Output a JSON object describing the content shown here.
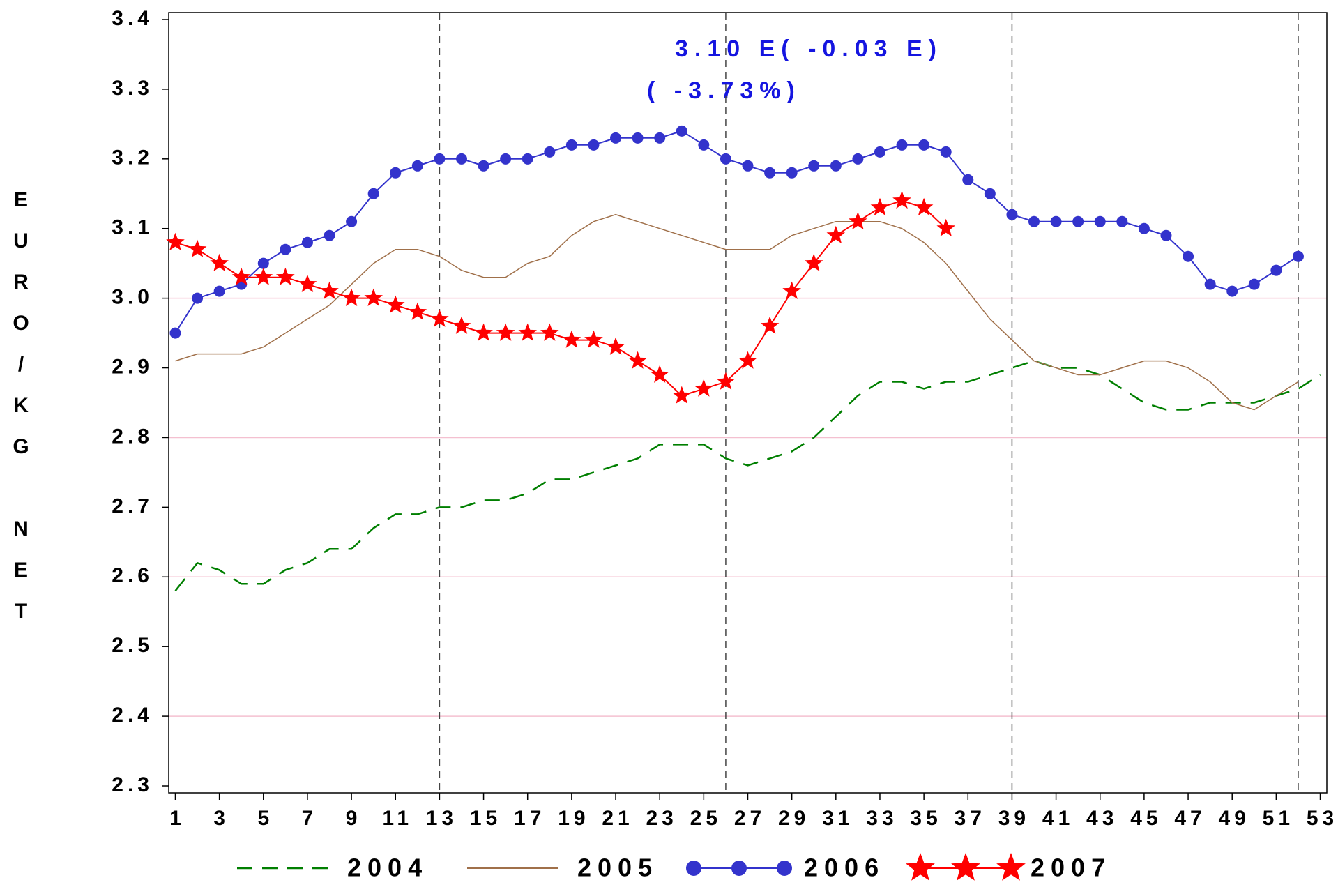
{
  "chart_data": {
    "type": "line",
    "y_label": "EURO/KG NET",
    "annotations": [
      "3.10 E( -0.03 E)",
      "( -3.73%)"
    ],
    "x": [
      1,
      2,
      3,
      4,
      5,
      6,
      7,
      8,
      9,
      10,
      11,
      12,
      13,
      14,
      15,
      16,
      17,
      18,
      19,
      20,
      21,
      22,
      23,
      24,
      25,
      26,
      27,
      28,
      29,
      30,
      31,
      32,
      33,
      34,
      35,
      36,
      37,
      38,
      39,
      40,
      41,
      42,
      43,
      44,
      45,
      46,
      47,
      48,
      49,
      50,
      51,
      52,
      53
    ],
    "xlim": [
      0.7,
      53.3
    ],
    "xticks": [
      1,
      3,
      5,
      7,
      9,
      11,
      13,
      15,
      17,
      19,
      21,
      23,
      25,
      27,
      29,
      31,
      33,
      35,
      37,
      39,
      41,
      43,
      45,
      47,
      49,
      51,
      53
    ],
    "ylim": [
      2.29,
      3.41
    ],
    "yticks": [
      2.3,
      2.4,
      2.5,
      2.6,
      2.7,
      2.8,
      2.9,
      {
        "value": 3.0,
        "label": "3.0"
      },
      3.1,
      3.2,
      3.3,
      3.4
    ],
    "grid_y": [
      2.4,
      2.6,
      2.8,
      3.0
    ],
    "grid_y_color": "#f4c0d0",
    "ref_x": [
      13,
      26,
      39,
      52
    ],
    "series": [
      {
        "name": "2004",
        "color": "#007f00",
        "dash": true,
        "marker": "none",
        "values": [
          2.58,
          2.62,
          2.61,
          2.59,
          2.59,
          2.61,
          2.62,
          2.64,
          2.64,
          2.67,
          2.69,
          2.69,
          2.7,
          2.7,
          2.71,
          2.71,
          2.72,
          2.74,
          2.74,
          2.75,
          2.76,
          2.77,
          2.79,
          2.79,
          2.79,
          2.77,
          2.76,
          2.77,
          2.78,
          2.8,
          2.83,
          2.86,
          2.88,
          2.88,
          2.87,
          2.88,
          2.88,
          2.89,
          2.9,
          2.91,
          2.9,
          2.9,
          2.89,
          2.87,
          2.85,
          2.84,
          2.84,
          2.85,
          2.85,
          2.85,
          2.86,
          2.87,
          2.89
        ]
      },
      {
        "name": "2005",
        "color": "#a0704a",
        "dash": false,
        "marker": "none",
        "values": [
          2.91,
          2.92,
          2.92,
          2.92,
          2.93,
          2.95,
          2.97,
          2.99,
          3.02,
          3.05,
          3.07,
          3.07,
          3.06,
          3.04,
          3.03,
          3.03,
          3.05,
          3.06,
          3.09,
          3.11,
          3.12,
          3.11,
          3.1,
          3.09,
          3.08,
          3.07,
          3.07,
          3.07,
          3.09,
          3.1,
          3.11,
          3.11,
          3.11,
          3.1,
          3.08,
          3.05,
          3.01,
          2.97,
          2.94,
          2.91,
          2.9,
          2.89,
          2.89,
          2.9,
          2.91,
          2.91,
          2.9,
          2.88,
          2.85,
          2.84,
          2.86,
          2.88,
          null
        ]
      },
      {
        "name": "2006",
        "color": "#3333cc",
        "dash": false,
        "marker": "circle",
        "values": [
          2.95,
          3.0,
          3.01,
          3.02,
          3.05,
          3.07,
          3.08,
          3.09,
          3.11,
          3.15,
          3.18,
          3.19,
          3.2,
          3.2,
          3.19,
          3.2,
          3.2,
          3.21,
          3.22,
          3.22,
          3.23,
          3.23,
          3.23,
          3.24,
          3.22,
          3.2,
          3.19,
          3.18,
          3.18,
          3.19,
          3.19,
          3.2,
          3.21,
          3.22,
          3.22,
          3.21,
          3.17,
          3.15,
          3.12,
          3.11,
          3.11,
          3.11,
          3.11,
          3.11,
          3.1,
          3.09,
          3.06,
          3.02,
          3.01,
          3.02,
          3.04,
          3.06,
          null
        ]
      },
      {
        "name": "2007",
        "color": "#ff0000",
        "dash": false,
        "marker": "star",
        "values": [
          3.08,
          3.07,
          3.05,
          3.03,
          3.03,
          3.03,
          3.02,
          3.01,
          3.0,
          3.0,
          2.99,
          2.98,
          2.97,
          2.96,
          2.95,
          2.95,
          2.95,
          2.95,
          2.94,
          2.94,
          2.93,
          2.91,
          2.89,
          2.86,
          2.87,
          2.88,
          2.91,
          2.96,
          3.01,
          3.05,
          3.09,
          3.11,
          3.13,
          3.14,
          3.13,
          3.1,
          null,
          null,
          null,
          null,
          null,
          null,
          null,
          null,
          null,
          null,
          null,
          null,
          null,
          null,
          null,
          null,
          null
        ]
      }
    ]
  }
}
